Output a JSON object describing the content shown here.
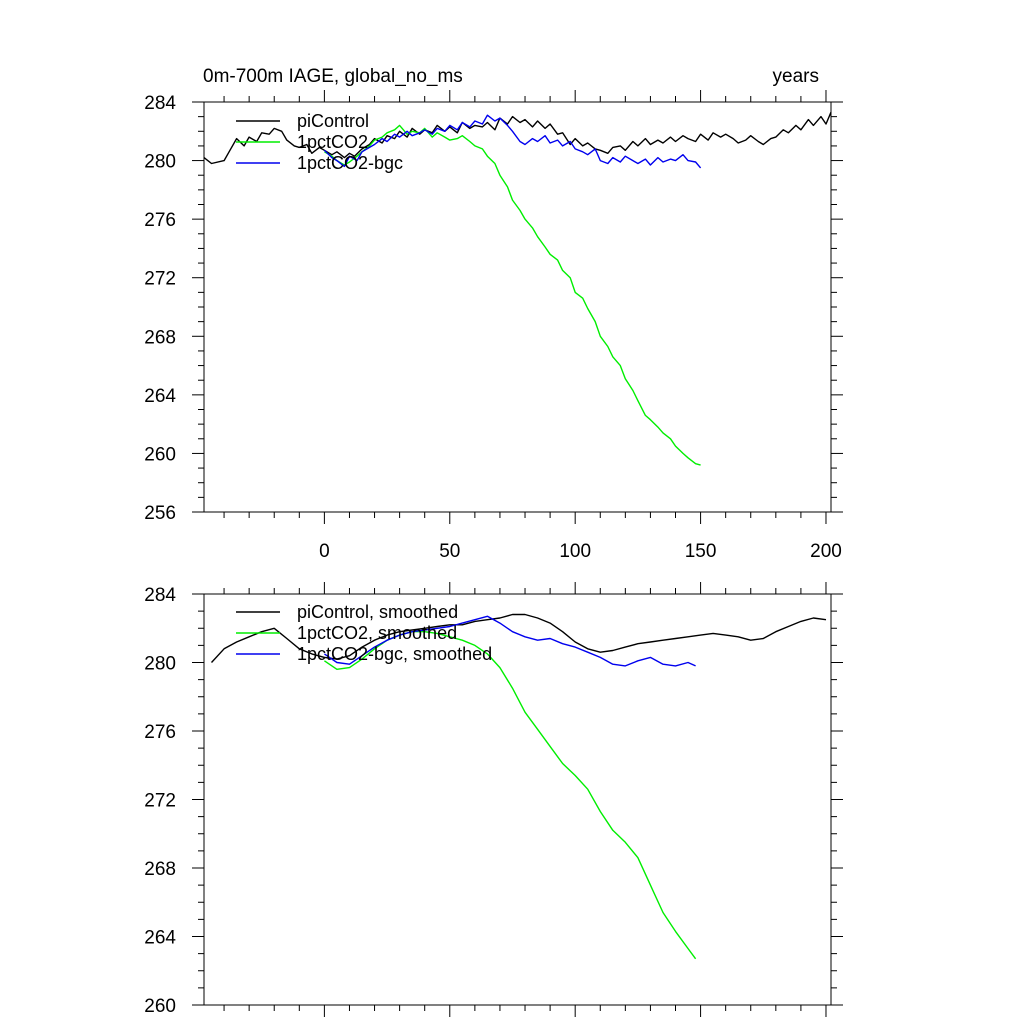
{
  "chart_data": [
    {
      "type": "line",
      "title": "0m-700m IAGE, global_no_ms",
      "subtitle_right": "years",
      "xlim": [
        -48,
        202
      ],
      "ylim": [
        256,
        284
      ],
      "xticks": [
        0,
        50,
        100,
        150,
        200
      ],
      "yticks": [
        256,
        260,
        264,
        268,
        272,
        276,
        280,
        284
      ],
      "legend_placement": "top-left",
      "series": [
        {
          "name": "piControl",
          "color": "#000000",
          "x": [
            -48,
            -45,
            -40,
            -38,
            -35,
            -32,
            -30,
            -27,
            -25,
            -22,
            -20,
            -17,
            -15,
            -12,
            -10,
            -7,
            -5,
            -2,
            0,
            3,
            5,
            8,
            10,
            12,
            15,
            18,
            20,
            23,
            25,
            28,
            30,
            33,
            35,
            38,
            40,
            43,
            45,
            48,
            50,
            53,
            55,
            58,
            60,
            63,
            65,
            68,
            70,
            73,
            75,
            78,
            80,
            83,
            85,
            88,
            90,
            93,
            95,
            98,
            100,
            103,
            105,
            108,
            110,
            113,
            115,
            118,
            120,
            123,
            125,
            128,
            130,
            133,
            135,
            138,
            140,
            143,
            145,
            148,
            150,
            153,
            155,
            158,
            160,
            163,
            165,
            168,
            170,
            173,
            175,
            178,
            180,
            183,
            185,
            188,
            190,
            193,
            195,
            198,
            200,
            202
          ],
          "values": [
            280.2,
            279.8,
            280.0,
            280.6,
            281.5,
            281.0,
            281.6,
            281.3,
            281.9,
            281.8,
            282.2,
            282.0,
            281.4,
            281.0,
            280.9,
            281.1,
            280.5,
            280.9,
            280.7,
            280.4,
            280.6,
            280.2,
            280.5,
            280.3,
            280.8,
            281.1,
            281.5,
            281.2,
            281.7,
            281.5,
            282.0,
            281.6,
            282.2,
            281.8,
            282.1,
            281.9,
            282.4,
            282.0,
            282.3,
            281.9,
            282.6,
            282.2,
            282.4,
            282.3,
            282.6,
            282.1,
            282.9,
            282.5,
            283.0,
            282.6,
            282.8,
            282.3,
            282.7,
            282.2,
            282.5,
            281.8,
            281.9,
            281.1,
            281.5,
            281.0,
            281.2,
            280.8,
            280.7,
            280.5,
            280.9,
            281.0,
            280.7,
            281.3,
            281.0,
            281.5,
            281.1,
            281.4,
            281.2,
            281.6,
            281.3,
            281.7,
            281.5,
            281.3,
            281.8,
            281.4,
            281.9,
            281.6,
            281.8,
            281.5,
            281.2,
            281.4,
            281.7,
            281.3,
            281.1,
            281.5,
            281.6,
            282.1,
            281.9,
            282.4,
            282.1,
            282.8,
            282.4,
            283.0,
            282.5,
            283.3
          ]
        },
        {
          "name": "1pctCO2",
          "color": "#00ee00",
          "x": [
            0,
            3,
            5,
            8,
            10,
            13,
            15,
            18,
            20,
            23,
            25,
            28,
            30,
            33,
            35,
            38,
            40,
            43,
            45,
            48,
            50,
            53,
            55,
            58,
            60,
            63,
            65,
            68,
            70,
            73,
            75,
            78,
            80,
            83,
            85,
            88,
            90,
            93,
            95,
            98,
            100,
            103,
            105,
            108,
            110,
            113,
            115,
            118,
            120,
            123,
            125,
            128,
            130,
            133,
            135,
            138,
            140,
            143,
            145,
            148,
            150
          ],
          "values": [
            280.6,
            280.3,
            280.0,
            279.7,
            279.9,
            280.3,
            280.6,
            281.0,
            281.4,
            281.6,
            281.9,
            282.1,
            282.4,
            281.8,
            282.0,
            281.9,
            282.2,
            281.6,
            281.9,
            281.6,
            281.4,
            281.5,
            281.7,
            281.3,
            281.0,
            280.8,
            280.3,
            279.8,
            279.0,
            278.2,
            277.3,
            276.6,
            276.0,
            275.4,
            274.8,
            274.1,
            273.6,
            273.2,
            272.5,
            272.0,
            271.0,
            270.6,
            269.9,
            269.0,
            268.0,
            267.3,
            266.6,
            266.0,
            265.1,
            264.3,
            263.6,
            262.6,
            262.3,
            261.8,
            261.4,
            261.0,
            260.5,
            260.0,
            259.7,
            259.3,
            259.2
          ]
        },
        {
          "name": "1pctCO2-bgc",
          "color": "#0000ee",
          "x": [
            0,
            3,
            5,
            8,
            10,
            13,
            15,
            18,
            20,
            23,
            25,
            28,
            30,
            33,
            35,
            38,
            40,
            43,
            45,
            48,
            50,
            53,
            55,
            58,
            60,
            63,
            65,
            68,
            70,
            73,
            75,
            78,
            80,
            83,
            85,
            88,
            90,
            93,
            95,
            98,
            100,
            103,
            105,
            108,
            110,
            113,
            115,
            118,
            120,
            123,
            125,
            128,
            130,
            133,
            135,
            138,
            140,
            143,
            145,
            148,
            150
          ],
          "values": [
            280.7,
            280.2,
            280.0,
            279.6,
            280.3,
            280.0,
            280.6,
            280.9,
            281.1,
            281.5,
            281.3,
            281.8,
            281.6,
            282.0,
            281.7,
            281.9,
            282.1,
            281.8,
            282.2,
            282.0,
            282.4,
            282.1,
            282.6,
            282.3,
            282.7,
            282.5,
            283.1,
            282.7,
            282.9,
            282.4,
            282.0,
            281.3,
            281.1,
            281.5,
            281.3,
            281.7,
            281.2,
            281.4,
            281.0,
            281.3,
            280.8,
            280.6,
            280.4,
            280.8,
            280.0,
            279.8,
            280.2,
            279.9,
            280.3,
            280.0,
            279.8,
            280.1,
            279.7,
            280.2,
            279.9,
            280.1,
            280.0,
            280.4,
            280.0,
            279.9,
            279.5
          ]
        }
      ]
    },
    {
      "type": "line",
      "xlim": [
        -48,
        202
      ],
      "ylim": [
        260,
        284
      ],
      "xticks": [
        0,
        50,
        100,
        150,
        200
      ],
      "yticks": [
        260,
        264,
        268,
        272,
        276,
        280,
        284
      ],
      "legend_placement": "top-left",
      "series": [
        {
          "name": "piControl, smoothed",
          "color": "#000000",
          "x": [
            -45,
            -40,
            -35,
            -30,
            -25,
            -20,
            -15,
            -10,
            -5,
            0,
            5,
            10,
            15,
            20,
            25,
            30,
            35,
            40,
            45,
            50,
            55,
            60,
            65,
            70,
            75,
            80,
            85,
            90,
            95,
            100,
            105,
            110,
            115,
            120,
            125,
            130,
            135,
            140,
            145,
            150,
            155,
            160,
            165,
            170,
            175,
            180,
            185,
            190,
            195,
            200
          ],
          "values": [
            280.0,
            280.8,
            281.2,
            281.5,
            281.8,
            282.0,
            281.4,
            280.8,
            280.5,
            280.3,
            280.2,
            280.4,
            280.9,
            281.3,
            281.6,
            281.8,
            281.9,
            282.0,
            282.1,
            282.2,
            282.2,
            282.4,
            282.5,
            282.6,
            282.8,
            282.8,
            282.6,
            282.3,
            281.8,
            281.2,
            280.8,
            280.6,
            280.7,
            280.9,
            281.1,
            281.2,
            281.3,
            281.4,
            281.5,
            281.6,
            281.7,
            281.6,
            281.5,
            281.3,
            281.4,
            281.8,
            282.1,
            282.4,
            282.6,
            282.5
          ]
        },
        {
          "name": "1pctCO2, smoothed",
          "color": "#00ee00",
          "x": [
            0,
            5,
            10,
            15,
            20,
            25,
            30,
            35,
            40,
            45,
            50,
            55,
            60,
            65,
            70,
            75,
            80,
            85,
            90,
            95,
            100,
            105,
            110,
            115,
            120,
            125,
            130,
            135,
            140,
            145,
            148
          ],
          "values": [
            280.1,
            279.6,
            279.7,
            280.2,
            280.8,
            281.3,
            281.6,
            281.8,
            281.8,
            281.7,
            281.5,
            281.3,
            281.0,
            280.5,
            279.7,
            278.5,
            277.1,
            276.1,
            275.1,
            274.1,
            273.4,
            272.6,
            271.3,
            270.2,
            269.5,
            268.6,
            267.0,
            265.4,
            264.3,
            263.3,
            262.7
          ]
        },
        {
          "name": "1pctCO2-bgc, smoothed",
          "color": "#0000ee",
          "x": [
            0,
            5,
            10,
            15,
            20,
            25,
            30,
            35,
            40,
            45,
            50,
            55,
            60,
            65,
            70,
            75,
            80,
            85,
            90,
            95,
            100,
            105,
            110,
            115,
            120,
            125,
            130,
            135,
            140,
            145,
            148
          ],
          "values": [
            280.5,
            280.0,
            279.9,
            280.4,
            280.9,
            281.3,
            281.6,
            281.8,
            281.9,
            282.0,
            282.1,
            282.3,
            282.5,
            282.7,
            282.3,
            281.8,
            281.5,
            281.3,
            281.4,
            281.1,
            280.9,
            280.6,
            280.3,
            279.9,
            279.8,
            280.1,
            280.3,
            279.9,
            279.8,
            280.0,
            279.8
          ]
        }
      ]
    }
  ]
}
